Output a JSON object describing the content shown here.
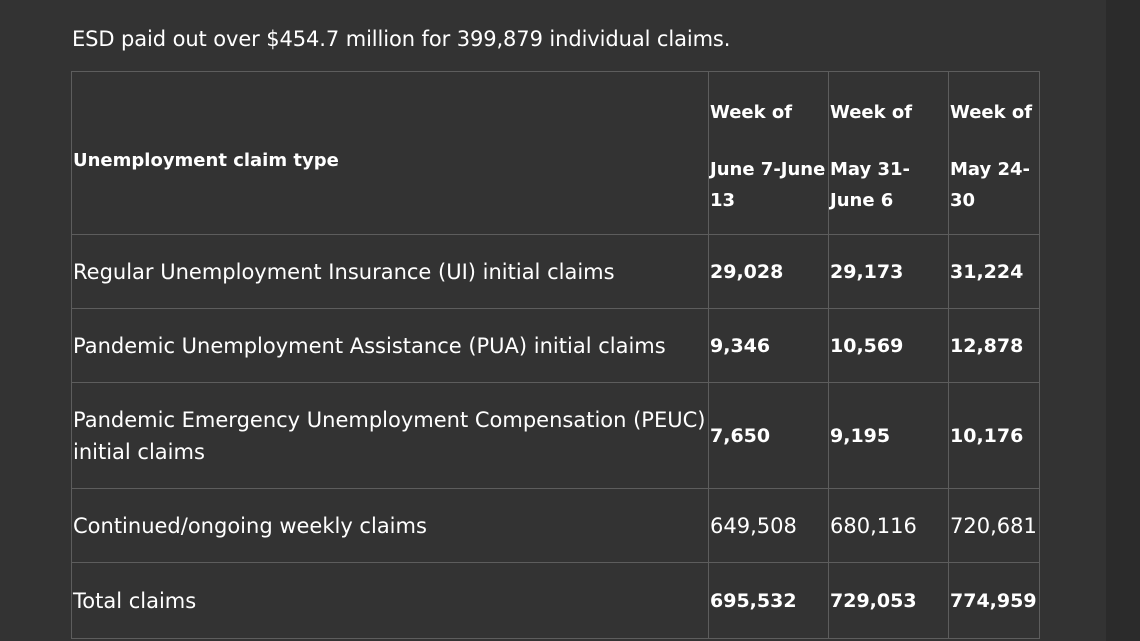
{
  "headline": "ESD paid out over $454.7 million for 399,879 individual claims.",
  "table": {
    "header": {
      "type_label": "Unemployment claim type",
      "weeks": [
        {
          "prefix": "Week of",
          "range": "June 7-June 13"
        },
        {
          "prefix": "Week of",
          "range": "May 31-June 6"
        },
        {
          "prefix": "Week of",
          "range": "May 24-30"
        }
      ]
    },
    "rows": [
      {
        "label": "Regular Unemployment Insurance (UI) initial claims",
        "values": [
          "29,028",
          "29,173",
          "31,224"
        ],
        "bold": true
      },
      {
        "label": "Pandemic Unemployment Assistance (PUA) initial claims",
        "values": [
          "9,346",
          "10,569",
          "12,878"
        ],
        "bold": true
      },
      {
        "label": "Pandemic Emergency Unemployment Compensation (PEUC) initial claims",
        "values": [
          "7,650",
          "9,195",
          "10,176"
        ],
        "bold": true
      },
      {
        "label": "Continued/ongoing weekly claims",
        "values": [
          "649,508",
          "680,116",
          "720,681"
        ],
        "bold": false
      },
      {
        "label": "Total claims",
        "values": [
          "695,532",
          "729,053",
          "774,959"
        ],
        "bold": true
      }
    ]
  }
}
